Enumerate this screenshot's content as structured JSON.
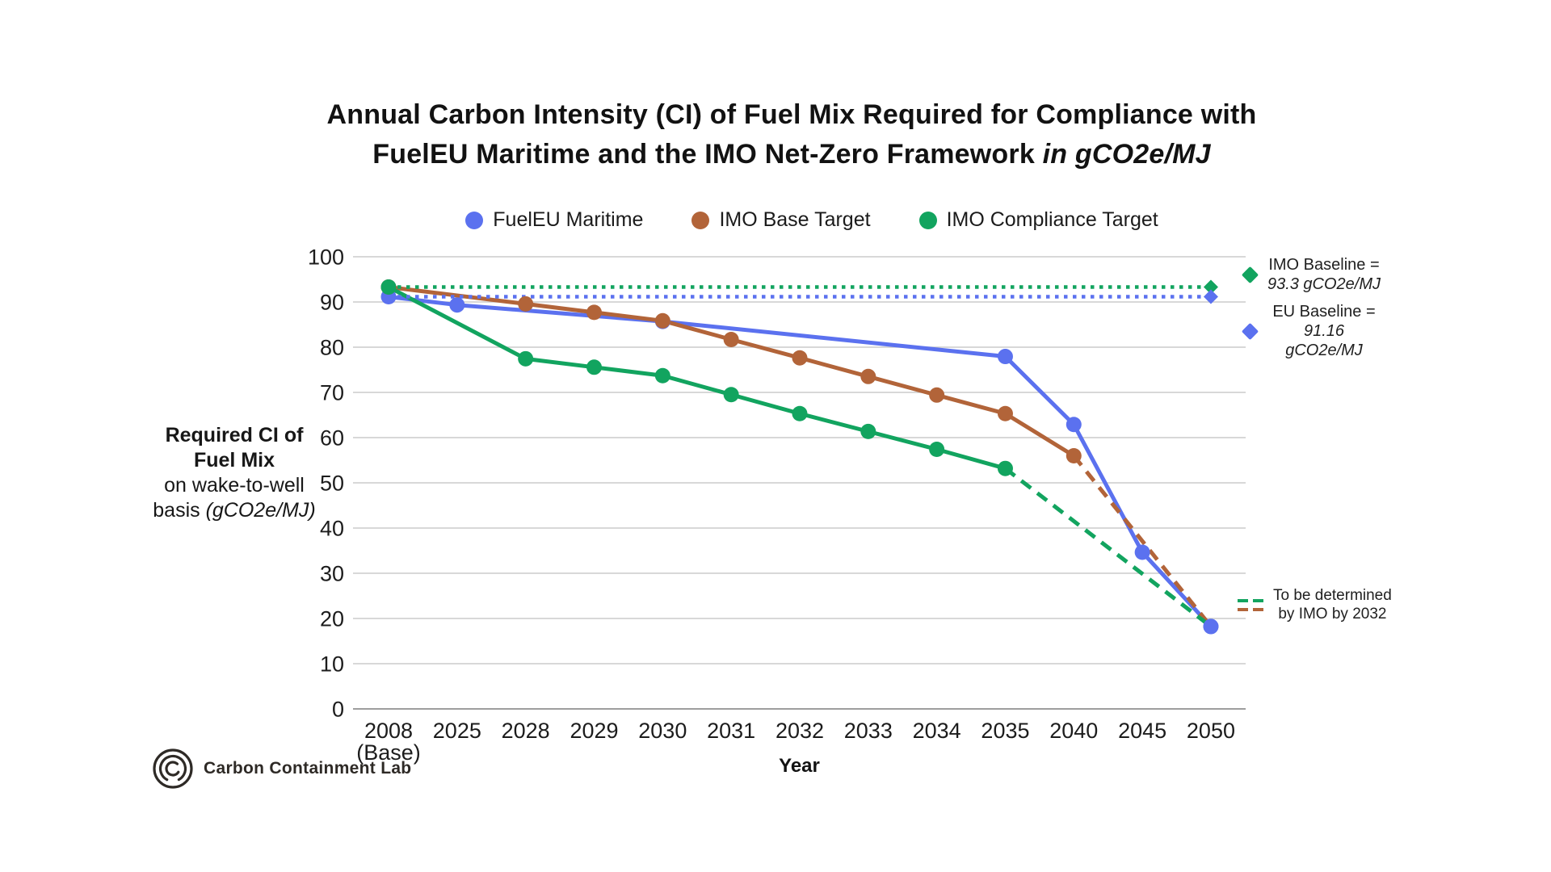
{
  "title": {
    "line1": "Annual Carbon Intensity (CI) of Fuel Mix Required for Compliance with",
    "line2_regular": "FuelEU Maritime and the IMO Net-Zero Framework ",
    "line2_italic": "in gCO2e/MJ"
  },
  "legend": {
    "items": [
      {
        "label": "FuelEU Maritime",
        "color": "#5b71ef"
      },
      {
        "label": "IMO Base Target",
        "color": "#b26439"
      },
      {
        "label": "IMO Compliance Target",
        "color": "#12a45f"
      }
    ]
  },
  "y_axis_title": {
    "line1": "Required CI of",
    "line2": "Fuel Mix",
    "line3": "on wake-to-well",
    "line4_regular": "basis ",
    "line4_italic": "(gCO2e/MJ)"
  },
  "annotations": {
    "imo_baseline": {
      "line1": "IMO Baseline =",
      "line2": "93.3 gCO2e/MJ",
      "color": "#12a45f"
    },
    "eu_baseline": {
      "line1": "EU Baseline =",
      "line2": "91.16 gCO2e/MJ",
      "color": "#5b71ef"
    },
    "tbd": {
      "line1": "To be determined",
      "line2": "by IMO by 2032",
      "colors": [
        "#12a45f",
        "#b26439"
      ]
    }
  },
  "footer": {
    "brand": "Carbon Containment Lab"
  },
  "chart_data": {
    "type": "line",
    "title": "Annual Carbon Intensity (CI) of Fuel Mix Required for Compliance with FuelEU Maritime and the IMO Net-Zero Framework in gCO2e/MJ",
    "xlabel": "Year",
    "ylabel": "Required CI of Fuel Mix on wake-to-well basis (gCO2e/MJ)",
    "ylim": [
      0,
      100
    ],
    "ytick_step": 10,
    "grid": "horizontal",
    "legend_position": "top",
    "categories": [
      "2008 (Base)",
      "2025",
      "2028",
      "2029",
      "2030",
      "2031",
      "2032",
      "2033",
      "2034",
      "2035",
      "2040",
      "2045",
      "2050"
    ],
    "category_labels": [
      [
        "2008",
        "(Base)"
      ],
      [
        "2025"
      ],
      [
        "2028"
      ],
      [
        "2029"
      ],
      [
        "2030"
      ],
      [
        "2031"
      ],
      [
        "2032"
      ],
      [
        "2033"
      ],
      [
        "2034"
      ],
      [
        "2035"
      ],
      [
        "2040"
      ],
      [
        "2045"
      ],
      [
        "2050"
      ]
    ],
    "series": [
      {
        "name": "FuelEU Maritime",
        "color": "#5b71ef",
        "values": [
          91.16,
          89.34,
          null,
          null,
          85.69,
          null,
          null,
          null,
          null,
          77.94,
          62.9,
          34.64,
          18.23
        ],
        "dash_from_index": null
      },
      {
        "name": "IMO Base Target",
        "color": "#b26439",
        "values": [
          93.3,
          null,
          89.57,
          87.7,
          85.84,
          81.7,
          77.64,
          73.52,
          69.41,
          65.31,
          55.98,
          null,
          18.23
        ],
        "dash_from_index": 10
      },
      {
        "name": "IMO Compliance Target",
        "color": "#12a45f",
        "values": [
          93.3,
          null,
          77.44,
          75.57,
          73.71,
          69.51,
          65.31,
          61.36,
          57.41,
          53.18,
          null,
          null,
          18.23
        ],
        "dash_from_index": 9
      }
    ],
    "baselines": [
      {
        "name": "IMO Baseline",
        "value": 93.3,
        "color": "#12a45f",
        "style": "dotted",
        "end_marker": "diamond"
      },
      {
        "name": "EU Baseline",
        "value": 91.16,
        "color": "#5b71ef",
        "style": "dotted",
        "end_marker": "diamond"
      }
    ],
    "dashed_segments_note": "To be determined by IMO by 2032",
    "top_marker": {
      "series_index": 0,
      "point_index": 12
    }
  }
}
